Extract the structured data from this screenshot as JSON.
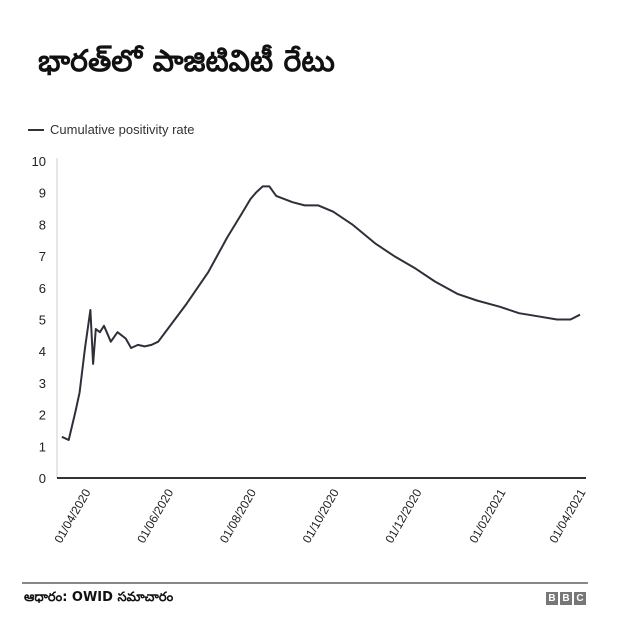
{
  "header": {
    "title": "భారత్‌లో పాజిటివిటీ రేటు"
  },
  "legend": {
    "label": "Cumulative positivity rate",
    "color": "#333333"
  },
  "footer": {
    "source": "ఆధారం: OWID సమాచారం",
    "logo": [
      "B",
      "B",
      "C"
    ]
  },
  "chart_data": {
    "type": "line",
    "title": "భారత్‌లో పాజిటివిటీ రేటు",
    "xlabel": "",
    "ylabel": "",
    "ylim": [
      0,
      10
    ],
    "yticks": [
      0,
      1,
      2,
      3,
      4,
      5,
      6,
      7,
      8,
      9,
      10
    ],
    "xticks": [
      "01/04/2020",
      "01/06/2020",
      "01/08/2020",
      "01/10/2020",
      "01/12/2020",
      "01/02/2021",
      "01/04/2021"
    ],
    "grid": false,
    "legend_position": "top-left",
    "series": [
      {
        "name": "Cumulative positivity rate",
        "x": [
          "2020-03-15",
          "2020-03-20",
          "2020-03-25",
          "2020-03-28",
          "2020-04-01",
          "2020-04-05",
          "2020-04-07",
          "2020-04-09",
          "2020-04-12",
          "2020-04-15",
          "2020-04-20",
          "2020-04-25",
          "2020-05-01",
          "2020-05-05",
          "2020-05-10",
          "2020-05-15",
          "2020-05-20",
          "2020-05-25",
          "2020-06-01",
          "2020-06-15",
          "2020-07-01",
          "2020-07-15",
          "2020-07-25",
          "2020-08-01",
          "2020-08-05",
          "2020-08-10",
          "2020-08-15",
          "2020-08-20",
          "2020-09-01",
          "2020-09-10",
          "2020-09-20",
          "2020-10-01",
          "2020-10-15",
          "2020-11-01",
          "2020-11-15",
          "2020-12-01",
          "2020-12-15",
          "2021-01-01",
          "2021-01-15",
          "2021-02-01",
          "2021-02-15",
          "2021-03-01",
          "2021-03-15",
          "2021-03-25",
          "2021-04-01"
        ],
        "values": [
          1.3,
          1.2,
          2.1,
          2.7,
          4.1,
          5.3,
          3.6,
          4.7,
          4.6,
          4.8,
          4.3,
          4.6,
          4.4,
          4.1,
          4.2,
          4.15,
          4.2,
          4.3,
          4.7,
          5.5,
          6.5,
          7.6,
          8.3,
          8.8,
          9.0,
          9.2,
          9.2,
          8.9,
          8.7,
          8.6,
          8.6,
          8.4,
          8.0,
          7.4,
          7.0,
          6.6,
          6.2,
          5.8,
          5.6,
          5.4,
          5.2,
          5.1,
          5.0,
          5.0,
          5.15
        ]
      }
    ]
  }
}
